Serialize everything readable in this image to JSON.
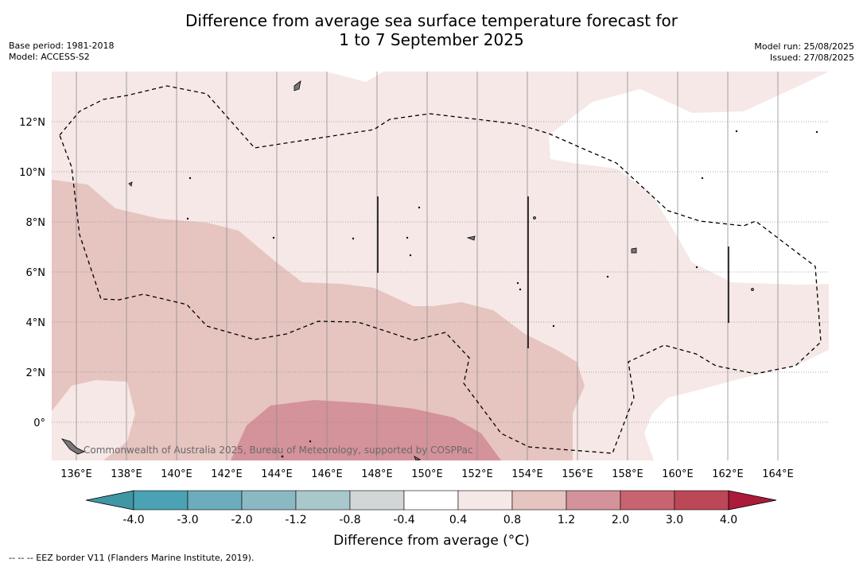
{
  "title_line1": "Difference from average sea surface temperature forecast for",
  "title_line2": "1 to 7 September 2025",
  "base_period": "Base period: 1981-2018",
  "model": "Model: ACCESS-S2",
  "model_run": "Model run: 25/08/2025",
  "issued": "Issued: 27/08/2025",
  "lon_ticks": [
    "136°E",
    "138°E",
    "140°E",
    "142°E",
    "144°E",
    "146°E",
    "148°E",
    "150°E",
    "152°E",
    "154°E",
    "156°E",
    "158°E",
    "160°E",
    "162°E",
    "164°E"
  ],
  "lat_ticks": [
    "12°N",
    "10°N",
    "8°N",
    "6°N",
    "4°N",
    "2°N",
    "0°"
  ],
  "copyright": "Commonwealth of Australia 2025, Bureau of Meteorology, supported by COSPPac",
  "colorbar": {
    "labels": [
      "-4.0",
      "-3.0",
      "-2.0",
      "-1.2",
      "-0.8",
      "-0.4",
      "0.4",
      "0.8",
      "1.2",
      "2.0",
      "3.0",
      "4.0"
    ],
    "colors": [
      "#3f96a5",
      "#4aa2b4",
      "#6cacbc",
      "#8ab9c4",
      "#a9c8cc",
      "#d3d6d6",
      "#ffffff",
      "#f5e8e6",
      "#e6c4c0",
      "#d4929a",
      "#c8636f",
      "#bb4757",
      "#ac1a39"
    ],
    "title": "Difference from average (°C)"
  },
  "footnote": "--  --  -- EEZ border V11 (Flanders Marine Institute, 2019)."
}
